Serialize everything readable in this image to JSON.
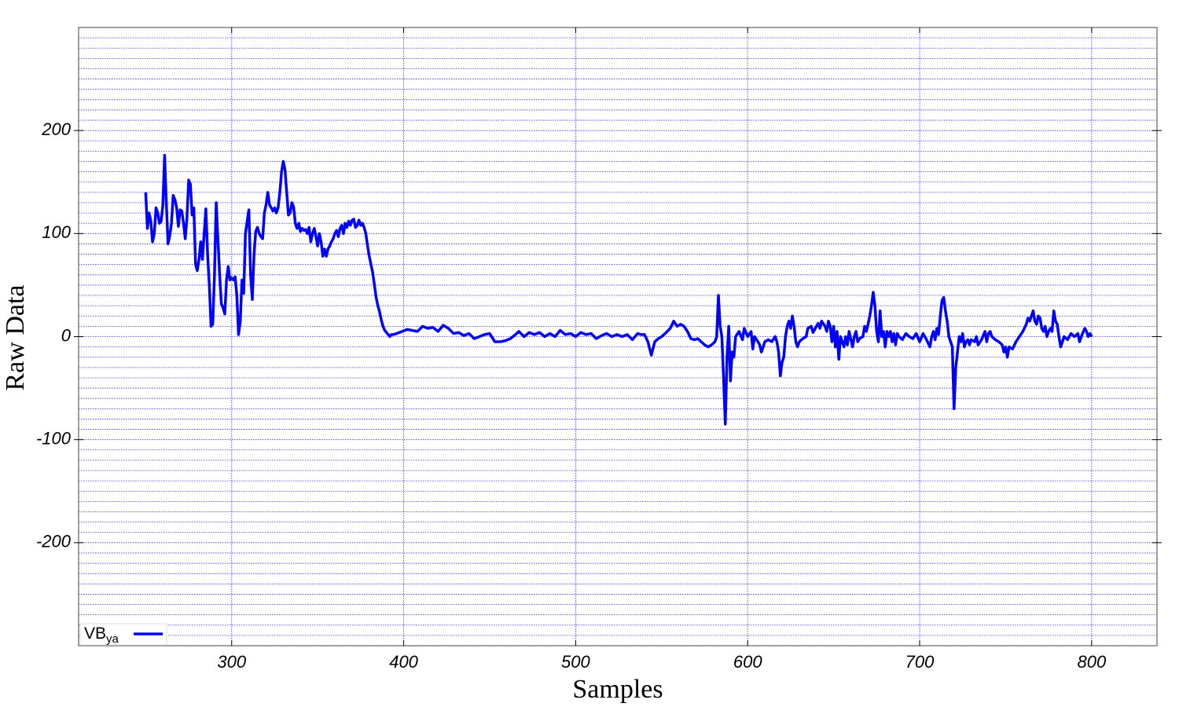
{
  "chart_data": {
    "type": "line",
    "x_label": "Samples",
    "y_label": "Raw Data",
    "xlim": [
      211,
      838
    ],
    "ylim": [
      -300,
      300
    ],
    "xticks": [
      300,
      400,
      500,
      600,
      700,
      800
    ],
    "yticks": [
      -200,
      -100,
      0,
      100,
      200
    ],
    "minor_yticks": [
      -290,
      -280,
      -270,
      -260,
      -250,
      -240,
      -230,
      -220,
      -210,
      -200,
      -190,
      -180,
      -170,
      -160,
      -150,
      -140,
      -130,
      -120,
      -110,
      -100,
      -90,
      -80,
      -70,
      -60,
      -50,
      -40,
      -30,
      -20,
      -10,
      0,
      10,
      20,
      30,
      40,
      50,
      60,
      70,
      80,
      90,
      100,
      110,
      120,
      130,
      140,
      150,
      160,
      170,
      180,
      190,
      200,
      210,
      220,
      230,
      240,
      250,
      260,
      270,
      280,
      290
    ],
    "grid": true,
    "legend": "lower left",
    "x": [
      250,
      251,
      252,
      253,
      254,
      255,
      256,
      257,
      258,
      259,
      260,
      261,
      262,
      263,
      264,
      265,
      266,
      267,
      268,
      269,
      270,
      271,
      272,
      273,
      274,
      275,
      276,
      277,
      278,
      279,
      280,
      281,
      282,
      283,
      284,
      285,
      286,
      287,
      288,
      289,
      290,
      291,
      292,
      293,
      294,
      295,
      296,
      297,
      298,
      299,
      300,
      301,
      302,
      303,
      304,
      305,
      306,
      307,
      308,
      309,
      310,
      311,
      312,
      313,
      314,
      315,
      316,
      317,
      318,
      319,
      320,
      321,
      322,
      323,
      324,
      325,
      326,
      327,
      328,
      329,
      330,
      331,
      332,
      333,
      334,
      335,
      336,
      337,
      338,
      339,
      340,
      341,
      342,
      343,
      344,
      345,
      346,
      347,
      348,
      349,
      350,
      351,
      352,
      353,
      354,
      355,
      356,
      357,
      358,
      359,
      360,
      361,
      362,
      363,
      364,
      365,
      366,
      367,
      368,
      369,
      370,
      371,
      372,
      373,
      374,
      375,
      376,
      377,
      378,
      379,
      380,
      381,
      382,
      383,
      384,
      385,
      386,
      387,
      388,
      389,
      390,
      391,
      392,
      393,
      394,
      396,
      399,
      402,
      405,
      408,
      411,
      414,
      417,
      420,
      423,
      426,
      429,
      432,
      435,
      438,
      441,
      444,
      447,
      450,
      453,
      456,
      459,
      462,
      465,
      467,
      470,
      473,
      476,
      479,
      482,
      485,
      488,
      491,
      494,
      497,
      500,
      503,
      506,
      509,
      512,
      515,
      518,
      521,
      524,
      527,
      530,
      533,
      536,
      538,
      540,
      542,
      544,
      546,
      548,
      550,
      552,
      555,
      557,
      559,
      561,
      563,
      565,
      567,
      569,
      571,
      573,
      575,
      577,
      579,
      581,
      582,
      583,
      584,
      585,
      586,
      587,
      588,
      589,
      590,
      591,
      592,
      593,
      595,
      597,
      598,
      600,
      602,
      603,
      604,
      606,
      607,
      608,
      610,
      612,
      614,
      616,
      617,
      618,
      619,
      620,
      621,
      622,
      623,
      624,
      625,
      626,
      627,
      628,
      629,
      630,
      632,
      634,
      635,
      637,
      638,
      640,
      641,
      642,
      643,
      645,
      646,
      647,
      648,
      649,
      650,
      651,
      652,
      653,
      654,
      655,
      656,
      657,
      658,
      659,
      661,
      662,
      663,
      664,
      665,
      667,
      668,
      669,
      670,
      671,
      672,
      673,
      674,
      675,
      676,
      677,
      678,
      679,
      680,
      681,
      682,
      683,
      684,
      685,
      686,
      687,
      688,
      690,
      692,
      694,
      696,
      698,
      700,
      702,
      704,
      706,
      707,
      708,
      709,
      710,
      711,
      712,
      713,
      714,
      715,
      716,
      717,
      718,
      719,
      720,
      721,
      722,
      723,
      724,
      725,
      726,
      727,
      728,
      729,
      730,
      732,
      733,
      734,
      736,
      738,
      739,
      740,
      741,
      742,
      744,
      746,
      748,
      749,
      750,
      751,
      752,
      754,
      756,
      758,
      760,
      762,
      763,
      764,
      765,
      766,
      767,
      768,
      769,
      770,
      771,
      772,
      773,
      774,
      775,
      776,
      777,
      778,
      779,
      780,
      781,
      782,
      783,
      784,
      786,
      788,
      790,
      792,
      793,
      794,
      796,
      797,
      798,
      799,
      800
    ],
    "series": [
      {
        "name": "VB",
        "name_sub": "ya",
        "color": "#0000ff",
        "values": [
          140,
          105,
          120,
          112,
          92,
          100,
          125,
          120,
          110,
          112,
          128,
          176,
          130,
          90,
          98,
          110,
          137,
          133,
          125,
          107,
          123,
          122,
          110,
          95,
          115,
          152,
          148,
          118,
          125,
          70,
          64,
          75,
          92,
          75,
          100,
          124,
          80,
          50,
          10,
          12,
          60,
          130,
          95,
          60,
          32,
          28,
          22,
          55,
          68,
          55,
          57,
          55,
          58,
          40,
          2,
          15,
          55,
          42,
          100,
          112,
          123,
          60,
          36,
          80,
          102,
          106,
          100,
          97,
          95,
          120,
          128,
          140,
          128,
          125,
          122,
          125,
          120,
          125,
          140,
          160,
          170,
          162,
          140,
          118,
          120,
          130,
          126,
          110,
          105,
          110,
          102,
          105,
          103,
          104,
          100,
          106,
          92,
          100,
          105,
          97,
          88,
          100,
          92,
          78,
          85,
          78,
          85,
          88,
          92,
          95,
          100,
          103,
          97,
          105,
          108,
          100,
          110,
          106,
          112,
          108,
          113,
          114,
          106,
          108,
          113,
          108,
          110,
          106,
          100,
          88,
          78,
          70,
          62,
          50,
          38,
          30,
          24,
          16,
          10,
          6,
          4,
          2,
          0,
          2,
          2,
          3,
          5,
          7,
          6,
          5,
          10,
          8,
          9,
          5,
          11,
          8,
          3,
          4,
          1,
          3,
          -2,
          0,
          2,
          3,
          -5,
          -5,
          -4,
          -2,
          2,
          5,
          0,
          4,
          2,
          4,
          0,
          3,
          0,
          6,
          2,
          3,
          0,
          4,
          2,
          3,
          -2,
          1,
          3,
          0,
          2,
          0,
          2,
          -3,
          3,
          2,
          2,
          -5,
          -18,
          -5,
          -2,
          0,
          3,
          8,
          15,
          10,
          12,
          10,
          5,
          -2,
          -3,
          -2,
          -5,
          -8,
          -10,
          -8,
          -5,
          0,
          40,
          10,
          0,
          -40,
          -85,
          -20,
          10,
          -43,
          -15,
          -20,
          0,
          5,
          -3,
          8,
          0,
          5,
          -12,
          0,
          -5,
          -8,
          -15,
          -5,
          -3,
          -5,
          0,
          -5,
          -15,
          -38,
          -25,
          -20,
          0,
          10,
          15,
          8,
          20,
          10,
          -5,
          -10,
          -5,
          -2,
          0,
          8,
          10,
          4,
          10,
          13,
          8,
          15,
          10,
          5,
          15,
          10,
          -5,
          10,
          -10,
          5,
          -22,
          0,
          -5,
          -10,
          0,
          -8,
          5,
          -10,
          0,
          5,
          -5,
          -2,
          0,
          10,
          5,
          12,
          20,
          30,
          43,
          30,
          5,
          -5,
          25,
          0,
          5,
          -10,
          5,
          0,
          5,
          -5,
          3,
          -8,
          3,
          0,
          -3,
          3,
          0,
          -2,
          3,
          -5,
          3,
          -3,
          -10,
          0,
          5,
          -3,
          8,
          2,
          20,
          35,
          38,
          25,
          15,
          0,
          -5,
          -10,
          -70,
          -30,
          -15,
          0,
          -5,
          3,
          -10,
          -5,
          -3,
          -8,
          -3,
          -5,
          0,
          -8,
          -3,
          5,
          -5,
          3,
          5,
          0,
          -3,
          -5,
          -8,
          -15,
          -10,
          -20,
          -10,
          -12,
          -5,
          0,
          5,
          12,
          18,
          15,
          20,
          25,
          15,
          12,
          20,
          18,
          8,
          5,
          10,
          0,
          5,
          8,
          5,
          25,
          15,
          12,
          0,
          -10,
          -5,
          0,
          -3,
          3,
          0,
          3,
          -5,
          0,
          8,
          5,
          0,
          3,
          0
        ]
      }
    ]
  }
}
